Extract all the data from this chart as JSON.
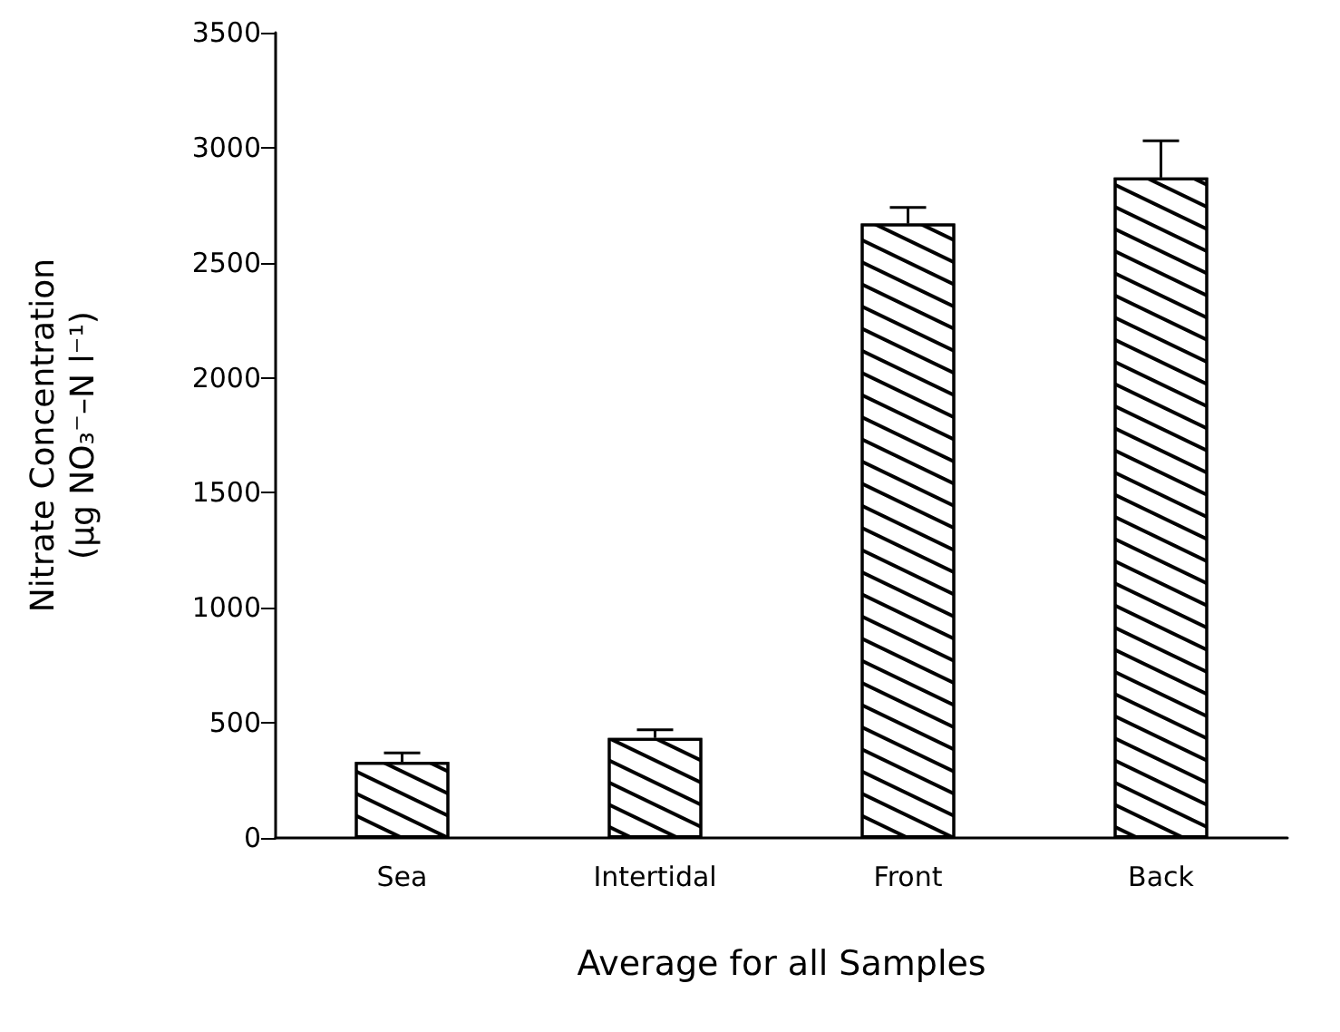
{
  "chart_data": {
    "type": "bar",
    "xlabel": "Average for all Samples",
    "ylabel": "Nitrate Concentration\n(μg NO₃⁻–N l⁻¹)",
    "categories": [
      "Sea",
      "Intertidal",
      "Front",
      "Back"
    ],
    "values": [
      330,
      435,
      2670,
      2870
    ],
    "color": "#ffffff",
    "errors": [
      [
        330,
        370
      ],
      [
        435,
        470
      ],
      [
        2670,
        2740
      ],
      [
        2870,
        3030
      ]
    ],
    "ylim": [
      0,
      3500
    ],
    "yticks": [
      0,
      500,
      1000,
      1500,
      2000,
      2500,
      3000,
      3500
    ],
    "grid": false
  }
}
